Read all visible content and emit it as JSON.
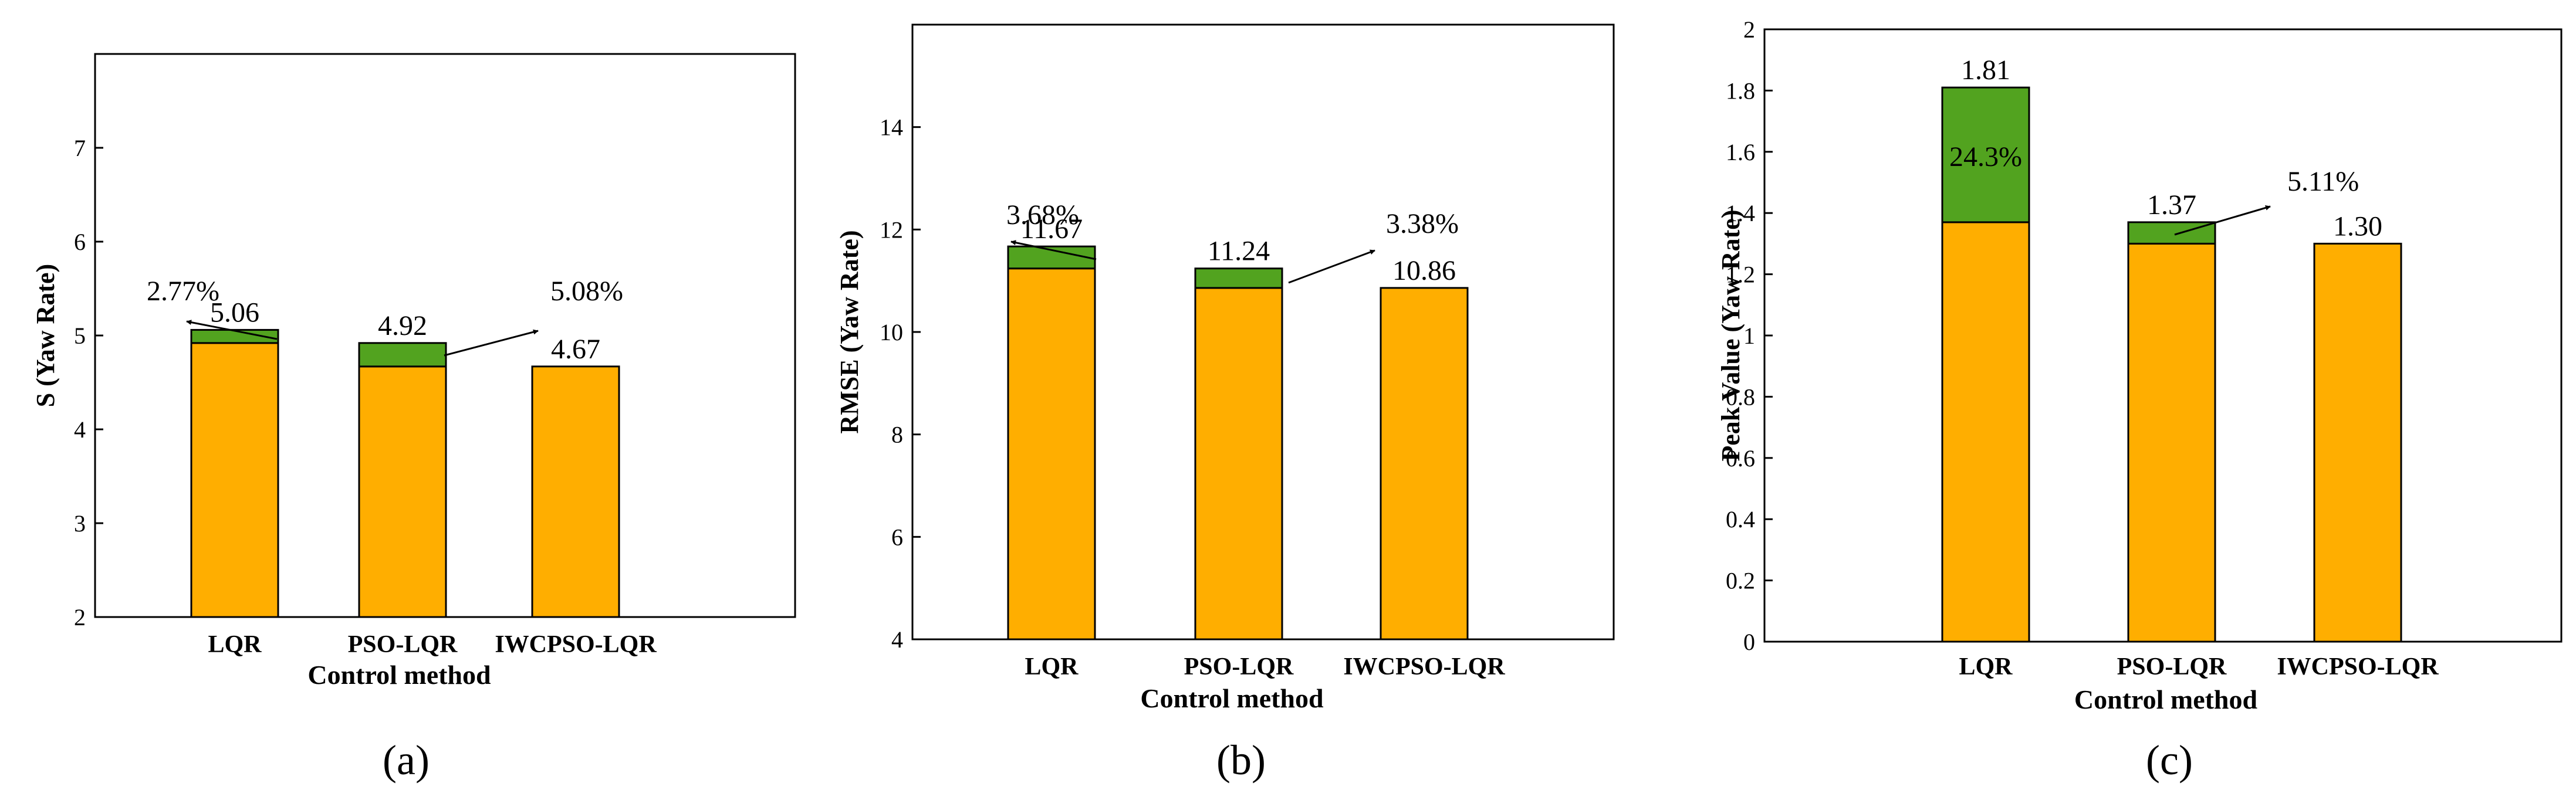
{
  "colors": {
    "base": "#FFAE00",
    "diff": "#52A31F",
    "frame": "#000000"
  },
  "chart_data": [
    {
      "type": "bar",
      "panel": "a",
      "panel_label": "(a)",
      "xlabel": "Control method",
      "ylabel": "S (Yaw Rate)",
      "ylim": [
        2,
        8
      ],
      "yticks": [
        "2",
        "3",
        "4",
        "5",
        "6",
        "7"
      ],
      "categories": [
        "LQR",
        "PSO-LQR",
        "IWCPSO-LQR"
      ],
      "values": [
        5.06,
        4.92,
        4.67
      ],
      "value_labels": [
        "5.06",
        "4.92",
        "4.67"
      ],
      "base_values": [
        4.92,
        4.67,
        4.67
      ],
      "improvement_labels": [
        "2.77%",
        "5.08%"
      ]
    },
    {
      "type": "bar",
      "panel": "b",
      "panel_label": "(b)",
      "xlabel": "Control method",
      "ylabel": "RMSE (Yaw Rate)",
      "ylim": [
        4,
        16
      ],
      "yticks": [
        "4",
        "6",
        "8",
        "10",
        "12",
        "14"
      ],
      "categories": [
        "LQR",
        "PSO-LQR",
        "IWCPSO-LQR"
      ],
      "values": [
        11.67,
        11.24,
        10.86
      ],
      "value_labels": [
        "11.67",
        "11.24",
        "10.86"
      ],
      "base_values": [
        11.24,
        10.86,
        10.86
      ],
      "improvement_labels": [
        "3.68%",
        "3.38%"
      ]
    },
    {
      "type": "bar",
      "panel": "c",
      "panel_label": "(c)",
      "xlabel": "Control method",
      "ylabel": "Peak Value (Yaw Rate)",
      "ylim": [
        0,
        2
      ],
      "yticks": [
        "0",
        "0.2",
        "0.4",
        "0.6",
        "0.8",
        "1",
        "1.2",
        "1.4",
        "1.6",
        "1.8",
        "2"
      ],
      "categories": [
        "LQR",
        "PSO-LQR",
        "IWCPSO-LQR"
      ],
      "values": [
        1.81,
        1.37,
        1.3
      ],
      "value_labels": [
        "1.81",
        "1.37",
        "1.30"
      ],
      "base_values": [
        1.37,
        1.3,
        1.3
      ],
      "improvement_labels": [
        "24.3%",
        "5.11%"
      ]
    }
  ]
}
